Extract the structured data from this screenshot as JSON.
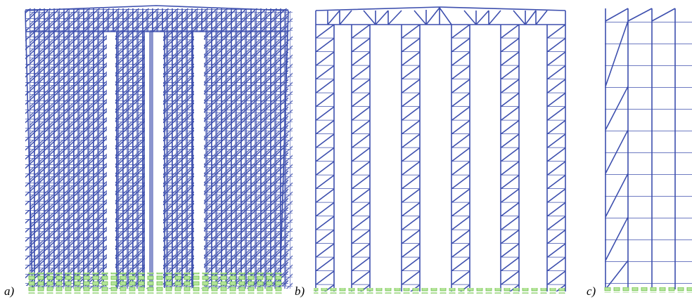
{
  "panels": [
    {
      "label": "a)"
    },
    {
      "label": "b)"
    },
    {
      "label": "c)"
    }
  ]
}
